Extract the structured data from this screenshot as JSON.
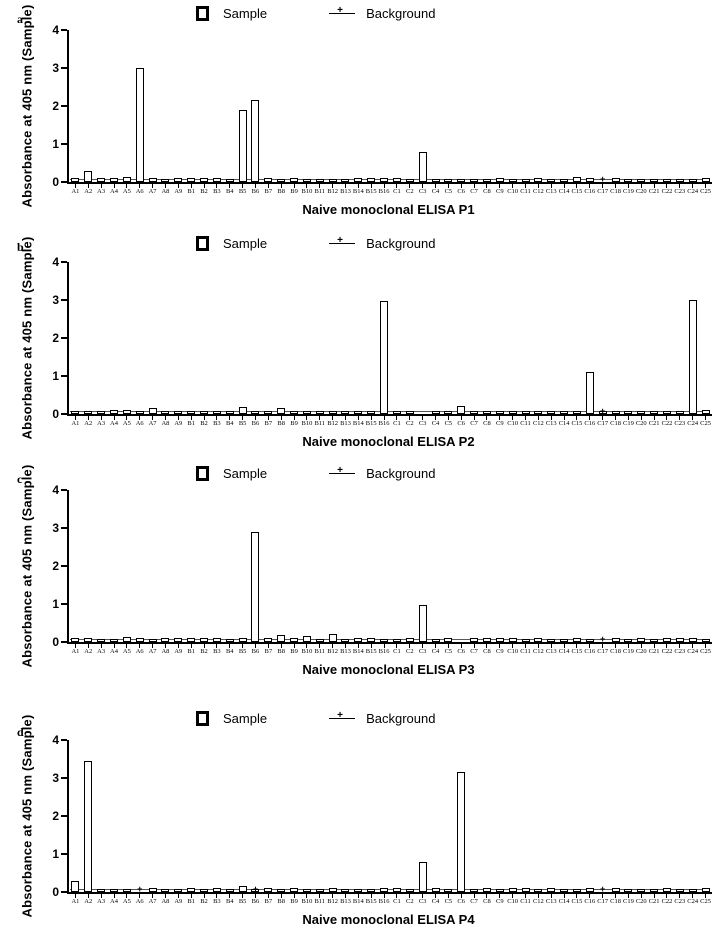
{
  "legend": {
    "sample_label": "Sample",
    "background_label": "Background",
    "sample_swatch_icon": "open-square-icon",
    "background_swatch_icon": "line-plus-marker-icon"
  },
  "colors": {
    "foreground": "#000000",
    "background": "#ffffff",
    "baseline_line": "#555555"
  },
  "chart_data": [
    {
      "type": "bar",
      "panel_letter": "a",
      "title": "Naive monoclonal ELISA P1",
      "ylabel": "Absorbance at 405 nm (Sample)",
      "xlabel": "",
      "ylim": [
        0,
        4
      ],
      "yticks": [
        0,
        1,
        2,
        3,
        4
      ],
      "grid": false,
      "legend_position": "top",
      "series_names": [
        "Sample",
        "Background"
      ],
      "categories": [
        "A1",
        "A2",
        "A3",
        "A4",
        "A5",
        "A6",
        "A7",
        "A8",
        "A9",
        "B1",
        "B2",
        "B3",
        "B4",
        "B5",
        "B6",
        "B7",
        "B8",
        "B9",
        "B10",
        "B11",
        "B12",
        "B13",
        "B14",
        "B15",
        "B16",
        "C1",
        "C2",
        "C3",
        "C4",
        "C5",
        "C6",
        "C7",
        "C8",
        "C9",
        "C10",
        "C11",
        "C12",
        "C13",
        "C14",
        "C15",
        "C16",
        "C17",
        "C18",
        "C19",
        "C20",
        "C21",
        "C22",
        "C23",
        "C24",
        "C25"
      ],
      "values": [
        0.1,
        0.28,
        0.1,
        0.1,
        0.12,
        3.0,
        0.1,
        0.09,
        0.1,
        0.1,
        0.1,
        0.1,
        0.08,
        1.9,
        2.15,
        0.1,
        0.08,
        0.1,
        0.08,
        0.06,
        0.08,
        0.08,
        0.1,
        0.1,
        0.1,
        0.1,
        0.08,
        0.78,
        0.08,
        0.08,
        0.08,
        0.08,
        0.08,
        0.1,
        0.08,
        0.08,
        0.1,
        0.08,
        0.08,
        0.12,
        0.1,
        0.02,
        0.1,
        0.08,
        0.08,
        0.08,
        0.08,
        0.08,
        0.08,
        0.1
      ],
      "background_value": 0.05,
      "background_marker_wells": [
        "C17"
      ]
    },
    {
      "type": "bar",
      "panel_letter": "b",
      "title": "Naive monoclonal ELISA P2",
      "ylabel": "Absorbance at 405 nm (Sample)",
      "xlabel": "",
      "ylim": [
        0,
        4
      ],
      "yticks": [
        0,
        1,
        2,
        3,
        4
      ],
      "grid": false,
      "legend_position": "top",
      "series_names": [
        "Sample",
        "Background"
      ],
      "categories": [
        "A1",
        "A2",
        "A3",
        "A4",
        "A5",
        "A6",
        "A7",
        "A8",
        "A9",
        "B1",
        "B2",
        "B3",
        "B4",
        "B5",
        "B6",
        "B7",
        "B8",
        "B9",
        "B10",
        "B11",
        "B12",
        "B13",
        "B14",
        "B15",
        "B16",
        "C1",
        "C2",
        "C3",
        "C4",
        "C5",
        "C6",
        "C7",
        "C8",
        "C9",
        "C10",
        "C11",
        "C12",
        "C13",
        "C14",
        "C15",
        "C16",
        "C17",
        "C18",
        "C19",
        "C20",
        "C21",
        "C22",
        "C23",
        "C24",
        "C25"
      ],
      "values": [
        0.08,
        0.07,
        0.09,
        0.1,
        0.1,
        0.08,
        0.15,
        0.07,
        0.06,
        0.05,
        0.04,
        0.08,
        0.05,
        0.18,
        0.06,
        0.08,
        0.17,
        0.08,
        0.08,
        0.07,
        0.08,
        0.08,
        0.07,
        0.08,
        2.98,
        0.06,
        0.04,
        0.03,
        0.07,
        0.08,
        0.2,
        0.06,
        0.07,
        0.08,
        0.08,
        0.08,
        0.08,
        0.07,
        0.08,
        0.08,
        1.1,
        0.08,
        0.07,
        0.06,
        0.07,
        0.06,
        0.08,
        0.08,
        3.0,
        0.1
      ],
      "background_value": 0.05,
      "background_marker_wells": [
        "C17"
      ]
    },
    {
      "type": "bar",
      "panel_letter": "c",
      "title": "Naive monoclonal ELISA P3",
      "ylabel": "Absorbance at 405 nm (Sample)",
      "xlabel": "",
      "ylim": [
        0,
        4
      ],
      "yticks": [
        0,
        1,
        2,
        3,
        4
      ],
      "grid": false,
      "legend_position": "top",
      "series_names": [
        "Sample",
        "Background"
      ],
      "categories": [
        "A1",
        "A2",
        "A3",
        "A4",
        "A5",
        "A6",
        "A7",
        "A8",
        "A9",
        "B1",
        "B2",
        "B3",
        "B4",
        "B5",
        "B6",
        "B7",
        "B8",
        "B9",
        "B10",
        "B11",
        "B12",
        "B13",
        "B14",
        "B15",
        "B16",
        "C1",
        "C2",
        "C3",
        "C4",
        "C5",
        "C6",
        "C7",
        "C8",
        "C9",
        "C10",
        "C11",
        "C12",
        "C13",
        "C14",
        "C15",
        "C16",
        "C17",
        "C18",
        "C19",
        "C20",
        "C21",
        "C22",
        "C23",
        "C24",
        "C25"
      ],
      "values": [
        0.1,
        0.1,
        0.08,
        0.08,
        0.12,
        0.1,
        0.08,
        0.1,
        0.1,
        0.1,
        0.1,
        0.1,
        0.08,
        0.1,
        2.9,
        0.1,
        0.18,
        0.1,
        0.17,
        0.07,
        0.2,
        0.09,
        0.1,
        0.1,
        0.08,
        0.04,
        0.1,
        0.98,
        0.07,
        0.1,
        0.02,
        0.1,
        0.1,
        0.1,
        0.1,
        0.08,
        0.1,
        0.08,
        0.08,
        0.1,
        0.08,
        0.02,
        0.1,
        0.08,
        0.1,
        0.08,
        0.1,
        0.1,
        0.1,
        0.08
      ],
      "background_value": 0.05,
      "background_marker_wells": [
        "C17"
      ]
    },
    {
      "type": "bar",
      "panel_letter": "d",
      "title": "Naive monoclonal ELISA P4",
      "ylabel": "Absorbance at 405 nm (Sample)",
      "xlabel": "",
      "ylim": [
        0,
        4
      ],
      "yticks": [
        0,
        1,
        2,
        3,
        4
      ],
      "grid": false,
      "legend_position": "top",
      "series_names": [
        "Sample",
        "Background"
      ],
      "categories": [
        "A1",
        "A2",
        "A3",
        "A4",
        "A5",
        "A6",
        "A7",
        "A8",
        "A9",
        "B1",
        "B2",
        "B3",
        "B4",
        "B5",
        "B6",
        "B7",
        "B8",
        "B9",
        "B10",
        "B11",
        "B12",
        "B13",
        "B14",
        "B15",
        "B16",
        "C1",
        "C2",
        "C3",
        "C4",
        "C5",
        "C6",
        "C7",
        "C8",
        "C9",
        "C10",
        "C11",
        "C12",
        "C13",
        "C14",
        "C15",
        "C16",
        "C17",
        "C18",
        "C19",
        "C20",
        "C21",
        "C22",
        "C23",
        "C24",
        "C25"
      ],
      "values": [
        0.3,
        3.45,
        0.08,
        0.08,
        0.07,
        0.02,
        0.1,
        0.08,
        0.08,
        0.1,
        0.08,
        0.1,
        0.08,
        0.15,
        0.05,
        0.1,
        0.08,
        0.1,
        0.08,
        0.08,
        0.1,
        0.08,
        0.08,
        0.08,
        0.1,
        0.1,
        0.08,
        0.78,
        0.1,
        0.08,
        3.15,
        0.08,
        0.1,
        0.08,
        0.1,
        0.1,
        0.08,
        0.1,
        0.08,
        0.08,
        0.1,
        0.02,
        0.1,
        0.08,
        0.08,
        0.08,
        0.1,
        0.08,
        0.08,
        0.1
      ],
      "background_value": 0.05,
      "background_marker_wells": [
        "A6",
        "B6",
        "C17"
      ]
    }
  ]
}
